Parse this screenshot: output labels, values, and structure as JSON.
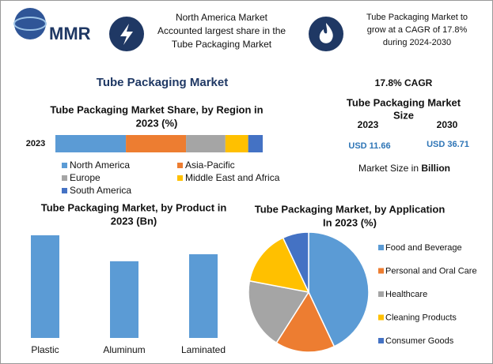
{
  "header": {
    "logo": "MMR",
    "highlight_1": [
      "North America Market",
      "Accounted largest share in the",
      "Tube Packaging Market"
    ],
    "highlight_2": [
      "Tube Packaging Market to",
      "grow at a CAGR of 17.8%",
      "during 2024-2030"
    ]
  },
  "title": "Tube Packaging Market",
  "summary": {
    "cagr": "17.8% CAGR",
    "heading": [
      "Tube Packaging Market",
      "Size"
    ],
    "years": [
      "2023",
      "2030"
    ],
    "sizes": [
      "USD 11.66",
      "USD 36.71"
    ],
    "note": "Market Size in",
    "unit": "Billion"
  },
  "chart_data": [
    {
      "type": "stacked-bar",
      "title": [
        "Tube Packaging Market Share, by Region in",
        "2023 (%)"
      ],
      "categories": [
        "2023"
      ],
      "series": [
        {
          "name": "North America",
          "color": "#5b9bd5",
          "values": [
            34
          ]
        },
        {
          "name": "Asia-Pacific",
          "color": "#ed7d31",
          "values": [
            29
          ]
        },
        {
          "name": "Europe",
          "color": "#a5a5a5",
          "values": [
            19
          ]
        },
        {
          "name": "Middle East and Africa",
          "color": "#ffc000",
          "values": [
            11
          ]
        },
        {
          "name": "South America",
          "color": "#4472c4",
          "values": [
            7
          ]
        }
      ]
    },
    {
      "type": "bar",
      "title": [
        "Tube Packaging Market, by Product in",
        "2023 (Bn)"
      ],
      "categories": [
        "Plastic",
        "Aluminum",
        "Laminated"
      ],
      "values": [
        4.55,
        3.4,
        3.71
      ],
      "color": "#5b9bd5"
    },
    {
      "type": "pie",
      "title": [
        "Tube Packaging Market, by Application",
        "In 2023 (%)"
      ],
      "categories": [
        "Food and Beverage",
        "Personal and Oral Care",
        "Healthcare",
        "Cleaning Products",
        "Consumer Goods"
      ],
      "values": [
        43,
        16,
        19,
        15,
        7
      ],
      "colors": [
        "#5b9bd5",
        "#ed7d31",
        "#a5a5a5",
        "#ffc000",
        "#4472c4"
      ]
    }
  ]
}
